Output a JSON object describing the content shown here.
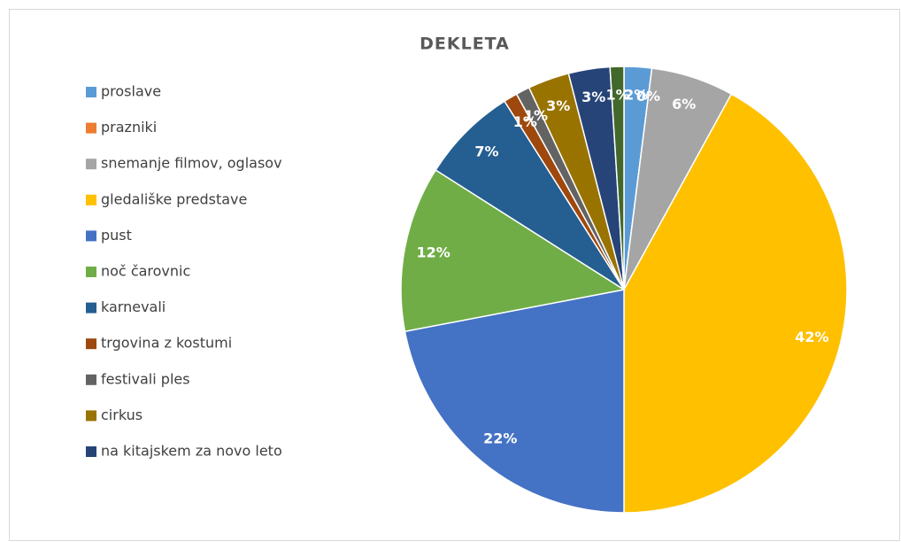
{
  "chart_data": {
    "type": "pie",
    "title": "DEKLETA",
    "categories": [
      "proslave",
      "prazniki",
      "snemanje filmov, oglasov",
      "gledališke predstave",
      "pust",
      "noč čarovnic",
      "karnevali",
      "trgovina z kostumi",
      "festivali ples",
      "cirkus",
      "na kitajskem za novo leto",
      null
    ],
    "values": [
      2,
      0,
      6,
      42,
      22,
      12,
      7,
      1,
      1,
      3,
      3,
      1
    ],
    "value_labels": [
      "2%",
      "0%",
      "6%",
      "42%",
      "22%",
      "12%",
      "7%",
      "1%",
      "1%",
      "3%",
      "3%",
      "1%"
    ],
    "colors": [
      "#5b9bd5",
      "#ed7d31",
      "#a5a5a5",
      "#ffc000",
      "#4472c4",
      "#70ad47",
      "#255e91",
      "#9e480e",
      "#636363",
      "#997300",
      "#264478",
      "#43682b"
    ],
    "legend": "left"
  }
}
